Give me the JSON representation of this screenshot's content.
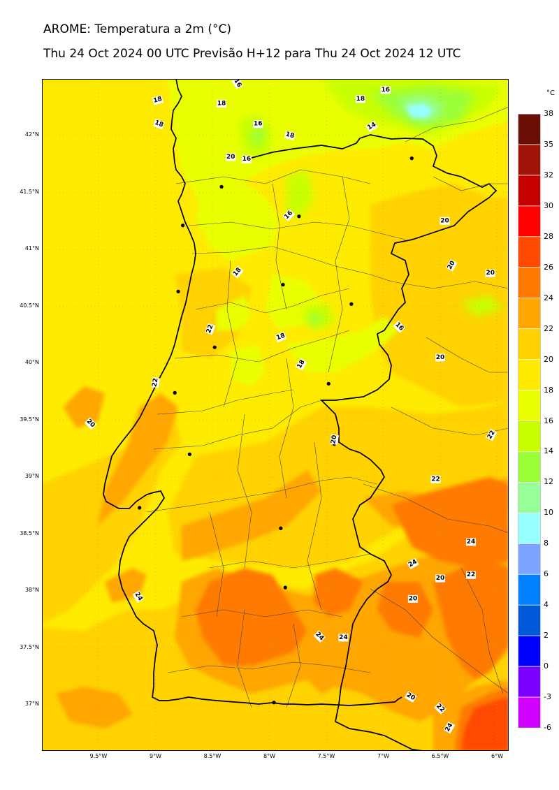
{
  "header": {
    "title": "AROME: Temperatura a 2m (°C)",
    "subtitle": "Thu 24 Oct 2024 00 UTC Previsão H+12 para Thu 24 Oct 2024 12 UTC"
  },
  "axes": {
    "lat_labels": [
      "42°N",
      "41.5°N",
      "41°N",
      "40.5°N",
      "40°N",
      "39.5°N",
      "39°N",
      "38.5°N",
      "38°N",
      "37.5°N",
      "37°N"
    ],
    "lon_labels": [
      "9.5°W",
      "9°W",
      "8.5°W",
      "8°W",
      "7.5°W",
      "7°W",
      "6.5°W",
      "6°W"
    ]
  },
  "colorbar": {
    "unit": "°C",
    "levels": [
      "38",
      "35",
      "32",
      "30",
      "28",
      "26",
      "24",
      "22",
      "20",
      "18",
      "16",
      "14",
      "12",
      "10",
      "8",
      "6",
      "4",
      "2",
      "0",
      "-3",
      "-6"
    ],
    "colors": [
      "#6b0f06",
      "#a01409",
      "#c40000",
      "#ff0000",
      "#ff4a00",
      "#ff7a00",
      "#ffa600",
      "#ffd200",
      "#ffeb00",
      "#eaff00",
      "#c8ff00",
      "#9cff38",
      "#98ff98",
      "#98ffff",
      "#7aa4ff",
      "#0080ff",
      "#005ad8",
      "#0000ff",
      "#7a00ff",
      "#d100ff"
    ]
  },
  "contour_labels": [
    {
      "text": "16",
      "lon": -8.28,
      "lat": 42.46,
      "rot": 60
    },
    {
      "text": "18",
      "lon": -8.98,
      "lat": 42.31,
      "rot": -15
    },
    {
      "text": "18",
      "lon": -8.42,
      "lat": 42.28,
      "rot": 0
    },
    {
      "text": "18",
      "lon": -8.97,
      "lat": 42.1,
      "rot": 20
    },
    {
      "text": "16",
      "lon": -8.1,
      "lat": 42.1,
      "rot": 0
    },
    {
      "text": "18",
      "lon": -7.82,
      "lat": 42.0,
      "rot": 15
    },
    {
      "text": "18",
      "lon": -7.2,
      "lat": 42.32,
      "rot": 0
    },
    {
      "text": "16",
      "lon": -6.98,
      "lat": 42.4,
      "rot": 0
    },
    {
      "text": "14",
      "lon": -7.1,
      "lat": 42.08,
      "rot": -30
    },
    {
      "text": "20",
      "lon": -8.34,
      "lat": 41.81,
      "rot": 0
    },
    {
      "text": "16",
      "lon": -8.2,
      "lat": 41.79,
      "rot": 0
    },
    {
      "text": "16",
      "lon": -7.83,
      "lat": 41.3,
      "rot": -45
    },
    {
      "text": "20",
      "lon": -6.46,
      "lat": 41.25,
      "rot": 0
    },
    {
      "text": "20",
      "lon": -6.4,
      "lat": 40.86,
      "rot": -60
    },
    {
      "text": "20",
      "lon": -6.06,
      "lat": 40.79,
      "rot": 0
    },
    {
      "text": "18",
      "lon": -8.28,
      "lat": 40.8,
      "rot": -50
    },
    {
      "text": "16",
      "lon": -6.86,
      "lat": 40.32,
      "rot": 45
    },
    {
      "text": "22",
      "lon": -8.52,
      "lat": 40.3,
      "rot": -70
    },
    {
      "text": "18",
      "lon": -7.9,
      "lat": 40.23,
      "rot": -20
    },
    {
      "text": "18",
      "lon": -7.72,
      "lat": 39.99,
      "rot": -60
    },
    {
      "text": "20",
      "lon": -6.5,
      "lat": 40.05,
      "rot": 0
    },
    {
      "text": "22",
      "lon": -9.0,
      "lat": 39.83,
      "rot": -80
    },
    {
      "text": "20",
      "lon": -9.57,
      "lat": 39.47,
      "rot": 45
    },
    {
      "text": "20",
      "lon": -7.43,
      "lat": 39.33,
      "rot": -80
    },
    {
      "text": "22",
      "lon": -6.05,
      "lat": 39.37,
      "rot": -60
    },
    {
      "text": "22",
      "lon": -6.54,
      "lat": 38.98,
      "rot": 0
    },
    {
      "text": "24",
      "lon": -6.23,
      "lat": 38.43,
      "rot": 0
    },
    {
      "text": "24",
      "lon": -6.74,
      "lat": 38.24,
      "rot": -30
    },
    {
      "text": "20",
      "lon": -6.5,
      "lat": 38.11,
      "rot": 0
    },
    {
      "text": "22",
      "lon": -6.23,
      "lat": 38.14,
      "rot": 0
    },
    {
      "text": "24",
      "lon": -9.15,
      "lat": 37.95,
      "rot": 60
    },
    {
      "text": "20",
      "lon": -6.74,
      "lat": 37.93,
      "rot": 0
    },
    {
      "text": "24",
      "lon": -7.56,
      "lat": 37.6,
      "rot": 45
    },
    {
      "text": "24",
      "lon": -7.35,
      "lat": 37.59,
      "rot": 0
    },
    {
      "text": "20",
      "lon": -6.76,
      "lat": 37.07,
      "rot": 30
    },
    {
      "text": "22",
      "lon": -6.5,
      "lat": 36.97,
      "rot": 45
    },
    {
      "text": "24",
      "lon": -6.42,
      "lat": 36.8,
      "rot": -60
    }
  ],
  "cities": [
    {
      "lon": -6.75,
      "lat": 41.8
    },
    {
      "lon": -8.42,
      "lat": 41.55
    },
    {
      "lon": -8.76,
      "lat": 41.21
    },
    {
      "lon": -7.74,
      "lat": 41.29
    },
    {
      "lon": -7.88,
      "lat": 40.69
    },
    {
      "lon": -8.8,
      "lat": 40.63
    },
    {
      "lon": -7.28,
      "lat": 40.52
    },
    {
      "lon": -8.48,
      "lat": 40.14
    },
    {
      "lon": -7.48,
      "lat": 39.82
    },
    {
      "lon": -8.83,
      "lat": 39.74
    },
    {
      "lon": -7.43,
      "lat": 39.29
    },
    {
      "lon": -8.7,
      "lat": 39.2
    },
    {
      "lon": -9.14,
      "lat": 38.73
    },
    {
      "lon": -7.9,
      "lat": 38.55
    },
    {
      "lon": -7.86,
      "lat": 38.03
    },
    {
      "lon": -7.96,
      "lat": 37.02
    }
  ]
}
